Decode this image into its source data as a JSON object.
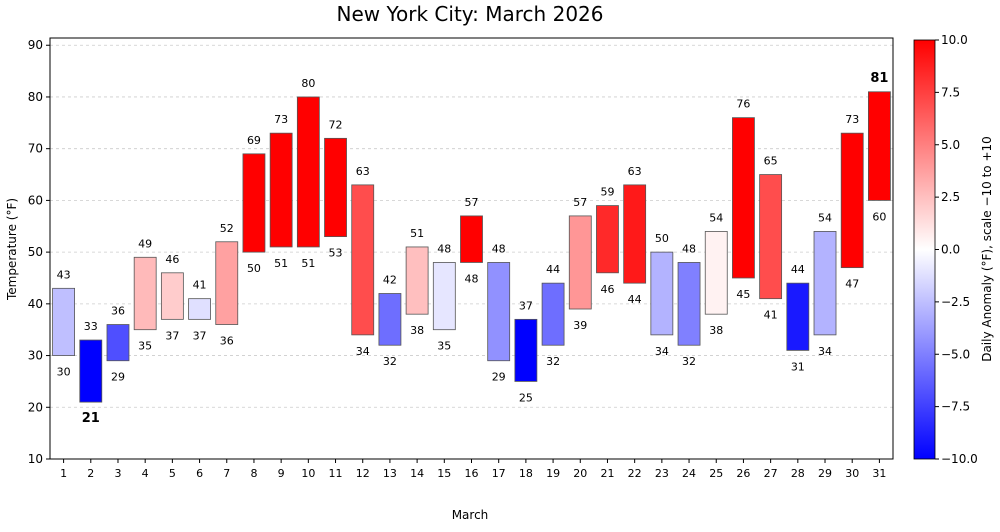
{
  "chart_data": {
    "type": "bar",
    "subtype": "floating-range",
    "title": "New York City: March 2026",
    "xlabel": "March",
    "ylabel": "Temperature (°F)",
    "ylim": [
      10,
      91.4
    ],
    "yticks": [
      10,
      20,
      30,
      40,
      50,
      60,
      70,
      80,
      90
    ],
    "grid": "horizontal dashed",
    "categories": [
      "1",
      "2",
      "3",
      "4",
      "5",
      "6",
      "7",
      "8",
      "9",
      "10",
      "11",
      "12",
      "13",
      "14",
      "15",
      "16",
      "17",
      "18",
      "19",
      "20",
      "21",
      "22",
      "23",
      "24",
      "25",
      "26",
      "27",
      "28",
      "29",
      "30",
      "31"
    ],
    "low": [
      30,
      21,
      29,
      35,
      37,
      37,
      36,
      50,
      51,
      51,
      53,
      34,
      32,
      38,
      35,
      48,
      29,
      25,
      32,
      39,
      46,
      44,
      34,
      32,
      38,
      45,
      41,
      31,
      34,
      47,
      60
    ],
    "high": [
      43,
      33,
      36,
      49,
      46,
      41,
      52,
      69,
      73,
      80,
      72,
      63,
      42,
      51,
      48,
      57,
      48,
      37,
      44,
      57,
      59,
      63,
      50,
      48,
      54,
      76,
      65,
      44,
      54,
      73,
      81
    ],
    "anomaly": [
      -2.5,
      -10,
      -6.9,
      2.7,
      2,
      -1.2,
      3.7,
      10,
      10,
      10,
      10,
      7,
      -5.7,
      2.5,
      -1,
      10,
      -4.3,
      -10,
      -5.7,
      4.1,
      8.4,
      9,
      -3,
      -5,
      0.5,
      10,
      7,
      -9,
      -3,
      10,
      10
    ],
    "highlight": {
      "record_low": {
        "day": "2",
        "value": 21,
        "color": "#0000ff"
      },
      "record_high": {
        "day": "31",
        "value": 81,
        "color": "#ff0000"
      }
    },
    "colorbar": {
      "label": "Daily Anomaly (°F), scale −10 to +10",
      "colormap": "bwr",
      "range": [
        -10,
        10
      ],
      "ticks": [
        "10.0",
        "7.5",
        "5.0",
        "2.5",
        "0.0",
        "−2.5",
        "−5.0",
        "−7.5",
        "−10.0"
      ],
      "tick_values": [
        10,
        7.5,
        5,
        2.5,
        0,
        -2.5,
        -5,
        -7.5,
        -10
      ]
    }
  }
}
